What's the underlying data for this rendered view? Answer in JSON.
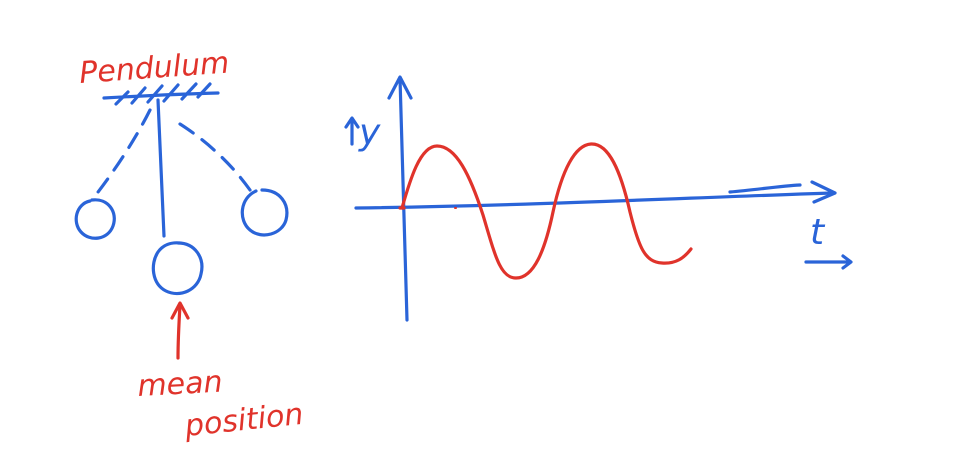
{
  "pendulum": {
    "title": "Pendulum",
    "mean_label_line1": "mean",
    "mean_label_line2": "position"
  },
  "graph": {
    "y_label": "y",
    "x_label": "t"
  },
  "colors": {
    "pen_blue": "#2a64d8",
    "pen_red": "#e0332b"
  }
}
